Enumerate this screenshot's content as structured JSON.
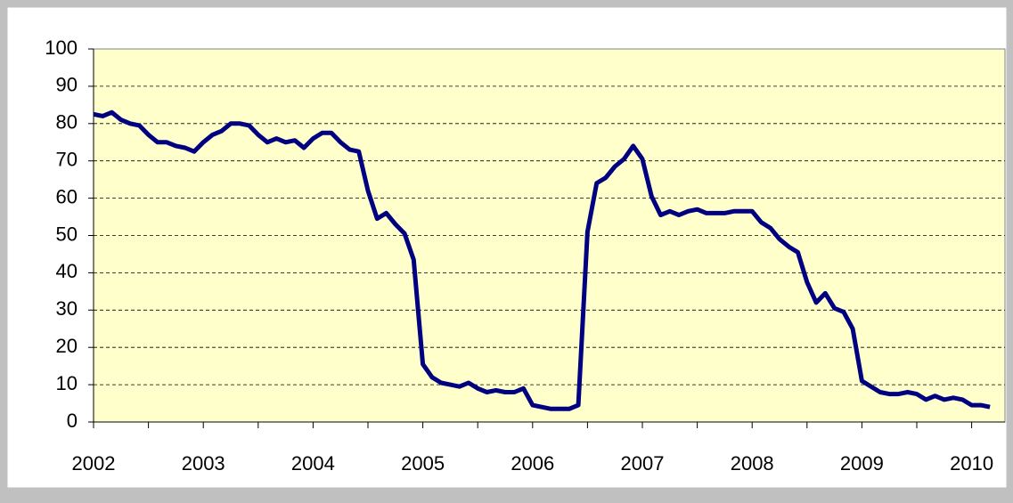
{
  "chart_data": {
    "type": "line",
    "categories": [
      "2002",
      null,
      null,
      null,
      null,
      null,
      null,
      null,
      null,
      null,
      null,
      null,
      "2003",
      null,
      null,
      null,
      null,
      null,
      null,
      null,
      null,
      null,
      null,
      null,
      "2004",
      null,
      null,
      null,
      null,
      null,
      null,
      null,
      null,
      null,
      null,
      null,
      "2005",
      null,
      null,
      null,
      null,
      null,
      null,
      null,
      null,
      null,
      null,
      null,
      "2006",
      null,
      null,
      null,
      null,
      null,
      null,
      null,
      null,
      null,
      null,
      null,
      "2007",
      null,
      null,
      null,
      null,
      null,
      null,
      null,
      null,
      null,
      null,
      null,
      "2008",
      null,
      null,
      null,
      null,
      null,
      null,
      null,
      null,
      null,
      null,
      null,
      "2009",
      null,
      null,
      null,
      null,
      null,
      null,
      null,
      null,
      null,
      null,
      null,
      "2010",
      null,
      null
    ],
    "series": [
      {
        "color": "#000080",
        "values": [
          82.5,
          82,
          83,
          81,
          80,
          79.5,
          77,
          75,
          75,
          74,
          73.5,
          72.5,
          75,
          77,
          78,
          80,
          80,
          79.5,
          77,
          75,
          76,
          75,
          75.5,
          73.5,
          76,
          77.5,
          77.5,
          75,
          73,
          72.5,
          62,
          54.5,
          56,
          53,
          50.5,
          43.5,
          15.5,
          12,
          10.5,
          10,
          9.5,
          10.5,
          9,
          8,
          8.5,
          8,
          8,
          9,
          4.5,
          4,
          3.5,
          3.5,
          3.5,
          4.5,
          51,
          64,
          65.5,
          68.5,
          70.5,
          74,
          70.5,
          60.5,
          55.5,
          56.5,
          55.5,
          56.5,
          57,
          56,
          56,
          56,
          56.5,
          56.5,
          56.5,
          53.5,
          52,
          49,
          47,
          45.5,
          37.5,
          32,
          34.5,
          30.5,
          29.5,
          25,
          11,
          9.5,
          8,
          7.5,
          7.5,
          8,
          7.5,
          6,
          7,
          6,
          6.5,
          6,
          4.5,
          4.5,
          4
        ]
      }
    ],
    "ylim": [
      0,
      100
    ],
    "yticks": [
      0,
      10,
      20,
      30,
      40,
      50,
      60,
      70,
      80,
      90,
      100
    ],
    "grid": true,
    "plot_background": "#ffffcc"
  }
}
